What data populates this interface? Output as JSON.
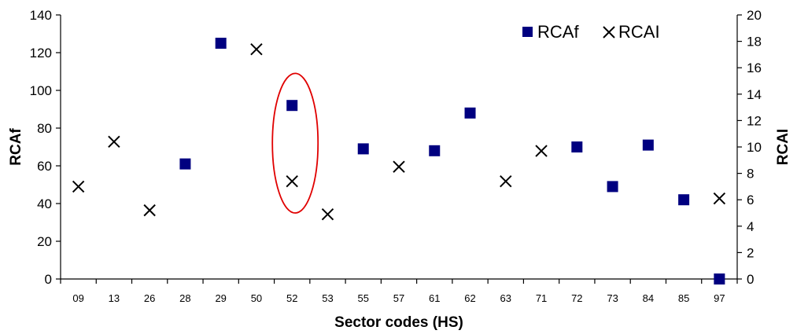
{
  "chart_data": {
    "type": "scatter",
    "xlabel": "Sector codes (HS)",
    "ylabel_left": "RCAf",
    "ylabel_right": "RCAI",
    "ylim_left": [
      0,
      140
    ],
    "ylim_right": [
      0,
      20
    ],
    "yticks_left": [
      0,
      20,
      40,
      60,
      80,
      100,
      120,
      140
    ],
    "yticks_right": [
      0,
      2,
      4,
      6,
      8,
      10,
      12,
      14,
      16,
      18,
      20
    ],
    "grid": false,
    "legend_position": "top-right",
    "x_tick_labels": [
      "09",
      "13",
      "26",
      "28",
      "29",
      "50",
      "52",
      "53",
      "55",
      "57",
      "61",
      "62",
      "63",
      "71",
      "72",
      "73",
      "84",
      "85",
      "97"
    ],
    "series": [
      {
        "name": "RCAf",
        "axis": "left",
        "marker": "square",
        "color": "#000080",
        "points": [
          {
            "x": 4,
            "y": 61
          },
          {
            "x": 5,
            "y": 125
          },
          {
            "x": 7,
            "y": 92
          },
          {
            "x": 9,
            "y": 69
          },
          {
            "x": 11,
            "y": 68
          },
          {
            "x": 12,
            "y": 88
          },
          {
            "x": 15,
            "y": 70
          },
          {
            "x": 16,
            "y": 49
          },
          {
            "x": 17,
            "y": 71
          },
          {
            "x": 18,
            "y": 42
          },
          {
            "x": 19,
            "y": 0
          }
        ]
      },
      {
        "name": "RCAI",
        "axis": "right",
        "marker": "x",
        "color": "#000000",
        "points": [
          {
            "x": 1,
            "y": 7.0
          },
          {
            "x": 2,
            "y": 10.4
          },
          {
            "x": 3,
            "y": 5.2
          },
          {
            "x": 6,
            "y": 17.4
          },
          {
            "x": 7,
            "y": 7.4
          },
          {
            "x": 8,
            "y": 4.9
          },
          {
            "x": 10,
            "y": 8.5
          },
          {
            "x": 13,
            "y": 7.4
          },
          {
            "x": 14,
            "y": 9.7
          },
          {
            "x": 19,
            "y": 6.1
          }
        ]
      }
    ],
    "highlight_ellipse": {
      "x": 7,
      "y_range_left": [
        35,
        109
      ],
      "color": "#e00000"
    }
  }
}
